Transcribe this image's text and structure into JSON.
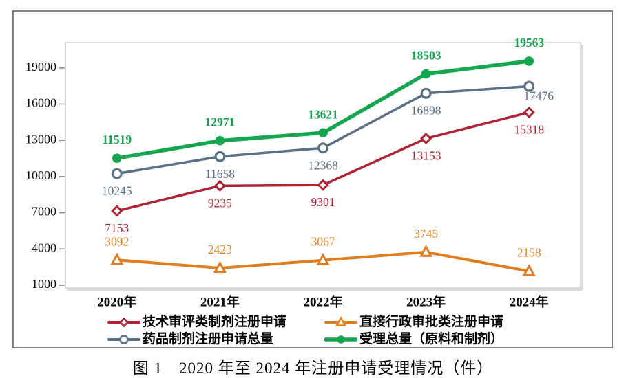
{
  "chart_data": {
    "type": "line",
    "title": "图 1　2020 年至 2024 年注册申请受理情况（件）",
    "categories": [
      "2020年",
      "2021年",
      "2022年",
      "2023年",
      "2024年"
    ],
    "series": [
      {
        "name": "技术审评类制剂注册申请",
        "values": [
          7153,
          9235,
          9301,
          13153,
          15318
        ],
        "color": "#B02334",
        "marker": "diamond-open",
        "line_width": 3.5,
        "label_position": "below",
        "bold_labels": false
      },
      {
        "name": "直接行政审批类注册申请",
        "values": [
          3092,
          2423,
          3067,
          3745,
          2158
        ],
        "color": "#E17D1E",
        "marker": "triangle-open",
        "line_width": 4,
        "label_position": "above",
        "bold_labels": false
      },
      {
        "name": "药品制剂注册申请总量",
        "values": [
          10245,
          11658,
          12368,
          16898,
          17476
        ],
        "color": "#5A7086",
        "marker": "circle-open",
        "line_width": 3.5,
        "label_position": "below",
        "bold_labels": false,
        "label_offsets": [
          null,
          null,
          null,
          null,
          [
            14,
            16
          ]
        ]
      },
      {
        "name": "受理总量（原料和制剂）",
        "values": [
          11519,
          12971,
          13621,
          18503,
          19563
        ],
        "color": "#14A750",
        "marker": "circle-filled",
        "line_width": 5.5,
        "label_position": "above",
        "bold_labels": true
      }
    ],
    "y_axis": {
      "ticks": [
        1000,
        4000,
        7000,
        10000,
        13000,
        16000,
        19000
      ],
      "min": 1000,
      "max": 21100
    },
    "grid": false,
    "legend_position": "bottom"
  }
}
